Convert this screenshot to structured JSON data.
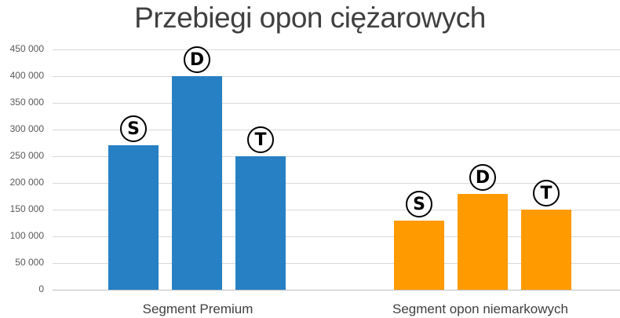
{
  "title": "Przebiegi opon ciężarowych",
  "colors": {
    "premium": "#2780c4",
    "niemarkowe": "#ff9a00"
  },
  "chart_data": {
    "type": "bar",
    "title": "Przebiegi opon ciężarowych",
    "xlabel": "",
    "ylabel": "",
    "ylim": [
      0,
      450000
    ],
    "yticks": [
      "0",
      "50 000",
      "100 000",
      "150 000",
      "200 000",
      "250 000",
      "300 000",
      "350 000",
      "400 000",
      "450 000"
    ],
    "grid": true,
    "legend": "none",
    "categories": [
      "Segment Premium",
      "Segment opon niemarkowych"
    ],
    "series": [
      {
        "name": "S",
        "values": [
          270000,
          130000
        ]
      },
      {
        "name": "D",
        "values": [
          400000,
          180000
        ]
      },
      {
        "name": "T",
        "values": [
          250000,
          150000
        ]
      }
    ],
    "bar_markers": [
      "S",
      "D",
      "T"
    ]
  }
}
